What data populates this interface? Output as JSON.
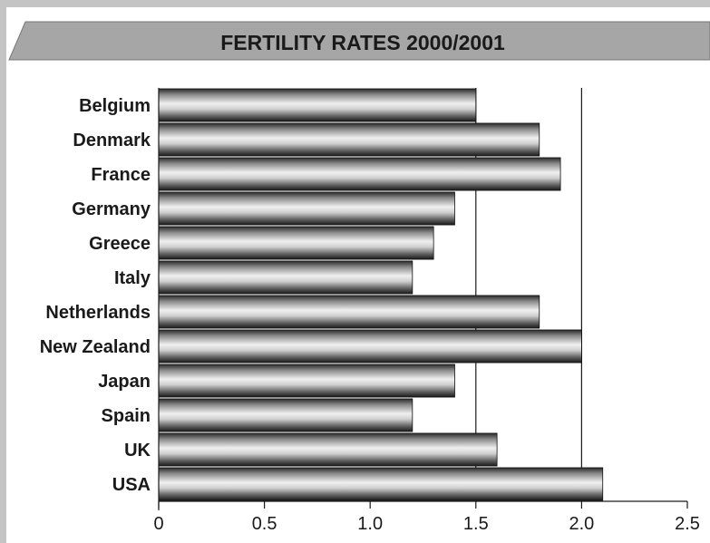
{
  "chart_data": {
    "type": "bar",
    "orientation": "horizontal",
    "title": "FERTILITY RATES 2000/2001",
    "categories": [
      "Belgium",
      "Denmark",
      "France",
      "Germany",
      "Greece",
      "Italy",
      "Netherlands",
      "New Zealand",
      "Japan",
      "Spain",
      "UK",
      "USA"
    ],
    "values": [
      1.5,
      1.8,
      1.9,
      1.4,
      1.3,
      1.2,
      1.8,
      2.0,
      1.4,
      1.2,
      1.6,
      2.1
    ],
    "xlim": [
      0,
      2.5
    ],
    "xticks": [
      0,
      0.5,
      1.0,
      1.5,
      2.0,
      2.5
    ],
    "xtick_labels": [
      "0",
      "0.5",
      "1.0",
      "1.5",
      "2.0",
      "2.5"
    ],
    "reference_lines": [
      1.5,
      2.0
    ],
    "grid": false,
    "bar_style": "metallic gradient"
  },
  "colors": {
    "background": "#c4c4c4",
    "panel": "#ffffff",
    "banner": "#a6a6a6",
    "bar_dark": "#1e1e1e",
    "bar_light": "#ececec",
    "line": "#1a1a1a"
  }
}
